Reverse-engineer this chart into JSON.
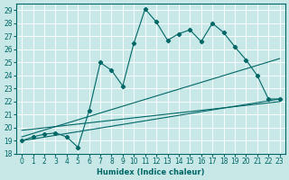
{
  "xlabel": "Humidex (Indice chaleur)",
  "bg_color": "#c8e8e8",
  "line_color": "#006666",
  "xlim": [
    -0.5,
    23.5
  ],
  "ylim": [
    18,
    29.5
  ],
  "yticks": [
    18,
    19,
    20,
    21,
    22,
    23,
    24,
    25,
    26,
    27,
    28,
    29
  ],
  "xticks": [
    0,
    1,
    2,
    3,
    4,
    5,
    6,
    7,
    8,
    9,
    10,
    11,
    12,
    13,
    14,
    15,
    16,
    17,
    18,
    19,
    20,
    21,
    22,
    23
  ],
  "series": [
    [
      0,
      19.0
    ],
    [
      1,
      19.3
    ],
    [
      2,
      19.5
    ],
    [
      3,
      19.6
    ],
    [
      4,
      19.3
    ],
    [
      5,
      18.5
    ],
    [
      6,
      21.3
    ],
    [
      7,
      25.0
    ],
    [
      8,
      24.4
    ],
    [
      9,
      23.2
    ],
    [
      10,
      26.5
    ],
    [
      11,
      29.1
    ],
    [
      12,
      28.1
    ],
    [
      13,
      26.7
    ],
    [
      14,
      27.2
    ],
    [
      15,
      27.5
    ],
    [
      16,
      26.6
    ],
    [
      17,
      28.0
    ],
    [
      18,
      27.3
    ],
    [
      19,
      26.2
    ],
    [
      20,
      25.2
    ],
    [
      21,
      24.0
    ],
    [
      22,
      22.2
    ],
    [
      23,
      22.2
    ]
  ],
  "line1": [
    [
      0,
      19.0
    ],
    [
      23,
      22.2
    ]
  ],
  "line2": [
    [
      0,
      19.3
    ],
    [
      23,
      25.3
    ]
  ],
  "line3": [
    [
      0,
      19.8
    ],
    [
      23,
      22.0
    ]
  ]
}
